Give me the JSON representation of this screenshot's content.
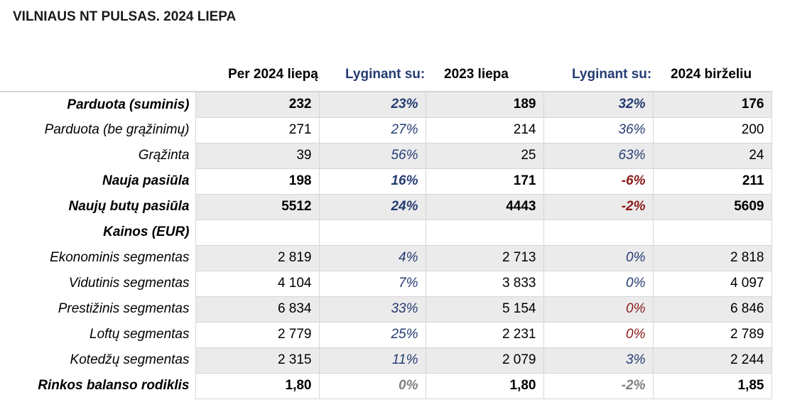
{
  "title": "VILNIAUS NT PULSAS. 2024 LIEPA",
  "headers": {
    "current": "Per 2024 liepą",
    "compare1": "Lyginant su:",
    "period1": "2023 liepa",
    "compare2": "Lyginant su:",
    "period2": "2024 birželiu"
  },
  "colors": {
    "blue": "#253c73",
    "red": "#8b1a1a",
    "gray": "#7f7f7f",
    "shade": "#ebebeb"
  },
  "rows": [
    {
      "label": "Parduota (suminis)",
      "bold": true,
      "shade": true,
      "cur": "232",
      "p1": "23%",
      "p1c": "blue",
      "v1": "189",
      "p2": "32%",
      "p2c": "blue",
      "v2": "176"
    },
    {
      "label": "Parduota (be grąžinimų)",
      "bold": false,
      "shade": false,
      "cur": "271",
      "p1": "27%",
      "p1c": "blue",
      "v1": "214",
      "p2": "36%",
      "p2c": "blue",
      "v2": "200"
    },
    {
      "label": "Grąžinta",
      "bold": false,
      "shade": true,
      "cur": "39",
      "p1": "56%",
      "p1c": "blue",
      "v1": "25",
      "p2": "63%",
      "p2c": "blue",
      "v2": "24"
    },
    {
      "label": "Nauja pasiūla",
      "bold": true,
      "shade": false,
      "cur": "198",
      "p1": "16%",
      "p1c": "blue",
      "v1": "171",
      "p2": "-6%",
      "p2c": "red",
      "v2": "211"
    },
    {
      "label": "Naujų butų pasiūla",
      "bold": true,
      "shade": true,
      "cur": "5512",
      "p1": "24%",
      "p1c": "blue",
      "v1": "4443",
      "p2": "-2%",
      "p2c": "red",
      "v2": "5609"
    },
    {
      "label": "Kainos (EUR)",
      "bold": true,
      "shade": false,
      "cur": "",
      "p1": "",
      "p1c": "blue",
      "v1": "",
      "p2": "",
      "p2c": "blue",
      "v2": ""
    },
    {
      "label": "Ekonominis segmentas",
      "bold": false,
      "shade": true,
      "cur": "2 819",
      "p1": "4%",
      "p1c": "blue",
      "v1": "2 713",
      "p2": "0%",
      "p2c": "blue",
      "v2": "2 818"
    },
    {
      "label": "Vidutinis segmentas",
      "bold": false,
      "shade": false,
      "cur": "4 104",
      "p1": "7%",
      "p1c": "blue",
      "v1": "3 833",
      "p2": "0%",
      "p2c": "blue",
      "v2": "4 097"
    },
    {
      "label": "Prestižinis segmentas",
      "bold": false,
      "shade": true,
      "cur": "6 834",
      "p1": "33%",
      "p1c": "blue",
      "v1": "5 154",
      "p2": "0%",
      "p2c": "red",
      "v2": "6 846"
    },
    {
      "label": "Loftų segmentas",
      "bold": false,
      "shade": false,
      "cur": "2 779",
      "p1": "25%",
      "p1c": "blue",
      "v1": "2 231",
      "p2": "0%",
      "p2c": "red",
      "v2": "2 789"
    },
    {
      "label": "Kotedžų segmentas",
      "bold": false,
      "shade": true,
      "cur": "2 315",
      "p1": "11%",
      "p1c": "blue",
      "v1": "2 079",
      "p2": "3%",
      "p2c": "blue",
      "v2": "2 244"
    },
    {
      "label": "Rinkos balanso rodiklis",
      "bold": true,
      "shade": false,
      "cur": "1,80",
      "p1": "0%",
      "p1c": "gray",
      "v1": "1,80",
      "p2": "-2%",
      "p2c": "gray",
      "v2": "1,85"
    }
  ]
}
